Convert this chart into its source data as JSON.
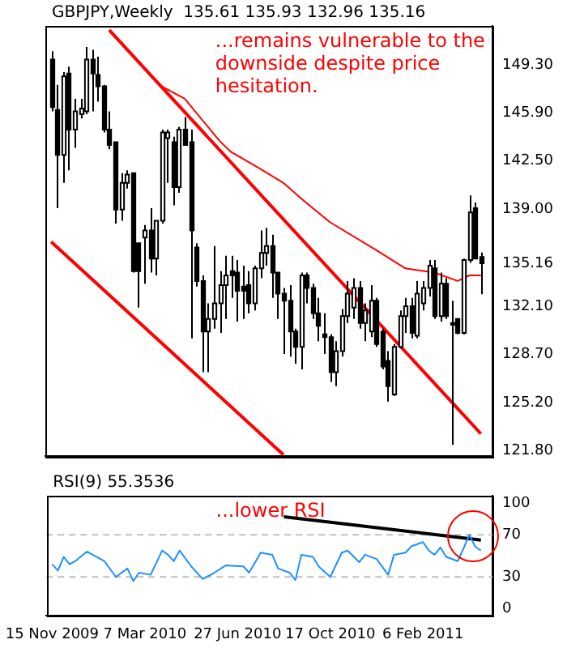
{
  "chart_data": [
    {
      "type": "candlestick",
      "title": "GBPJPY,Weekly  135.61 135.93 132.96 135.16",
      "annotations": [
        "...remains vulnerable to the downside despite price hesitation."
      ],
      "x": [
        "2009-11-15",
        "2009-11-22",
        "2009-11-29",
        "2009-12-06",
        "2009-12-13",
        "2009-12-20",
        "2009-12-27",
        "2010-01-03",
        "2010-01-10",
        "2010-01-17",
        "2010-01-24",
        "2010-01-31",
        "2010-02-07",
        "2010-02-14",
        "2010-02-21",
        "2010-02-28",
        "2010-03-07",
        "2010-03-14",
        "2010-03-21",
        "2010-03-28",
        "2010-04-04",
        "2010-04-11",
        "2010-04-18",
        "2010-04-25",
        "2010-05-02",
        "2010-05-09",
        "2010-05-16",
        "2010-05-23",
        "2010-05-30",
        "2010-06-06",
        "2010-06-13",
        "2010-06-20",
        "2010-06-27",
        "2010-07-04",
        "2010-07-11",
        "2010-07-18",
        "2010-07-25",
        "2010-08-01",
        "2010-08-08",
        "2010-08-15",
        "2010-08-22",
        "2010-08-29",
        "2010-09-05",
        "2010-09-12",
        "2010-09-19",
        "2010-09-26",
        "2010-10-03",
        "2010-10-10",
        "2010-10-17",
        "2010-10-24",
        "2010-10-31",
        "2010-11-07",
        "2010-11-14",
        "2010-11-21",
        "2010-11-28",
        "2010-12-05",
        "2010-12-12",
        "2010-12-19",
        "2010-12-26",
        "2011-01-02",
        "2011-01-09",
        "2011-01-16",
        "2011-01-23",
        "2011-01-30",
        "2011-02-06",
        "2011-02-13",
        "2011-02-20",
        "2011-02-27",
        "2011-03-06",
        "2011-03-13",
        "2011-03-20",
        "2011-03-27",
        "2011-04-03",
        "2011-04-10",
        "2011-04-17"
      ],
      "ohlc": [
        [
          149.7,
          150.3,
          146.0,
          146.3
        ],
        [
          146.1,
          147.9,
          139.1,
          142.9
        ],
        [
          142.9,
          148.8,
          140.9,
          148.5
        ],
        [
          148.7,
          149.2,
          141.8,
          144.7
        ],
        [
          144.7,
          146.9,
          143.4,
          146.0
        ],
        [
          145.8,
          146.9,
          145.5,
          146.2
        ],
        [
          146.0,
          150.6,
          145.8,
          149.7
        ],
        [
          149.7,
          150.4,
          146.0,
          148.7
        ],
        [
          148.6,
          149.9,
          146.7,
          147.8
        ],
        [
          147.8,
          147.9,
          144.5,
          144.7
        ],
        [
          144.7,
          146.0,
          143.3,
          143.6
        ],
        [
          143.8,
          143.8,
          138.0,
          139.0
        ],
        [
          139.0,
          141.6,
          138.2,
          140.9
        ],
        [
          140.9,
          141.8,
          140.5,
          141.5
        ],
        [
          141.6,
          141.6,
          134.5,
          134.6
        ],
        [
          136.6,
          136.6,
          132.0,
          134.6
        ],
        [
          137.0,
          137.9,
          133.7,
          137.5
        ],
        [
          137.5,
          139.1,
          134.5,
          135.5
        ],
        [
          135.5,
          138.2,
          134.3,
          138.2
        ],
        [
          138.2,
          144.7,
          138.0,
          144.5
        ],
        [
          144.1,
          144.7,
          140.9,
          144.5
        ],
        [
          143.8,
          144.2,
          139.3,
          140.6
        ],
        [
          140.6,
          144.9,
          140.2,
          144.7
        ],
        [
          144.7,
          145.6,
          143.6,
          143.6
        ],
        [
          143.8,
          144.7,
          129.8,
          137.5
        ],
        [
          136.3,
          136.6,
          133.5,
          133.9
        ],
        [
          133.9,
          134.3,
          127.4,
          130.3
        ],
        [
          130.3,
          132.3,
          127.4,
          131.2
        ],
        [
          131.2,
          136.4,
          130.5,
          132.3
        ],
        [
          132.3,
          134.6,
          130.2,
          133.6
        ],
        [
          133.6,
          135.7,
          131.2,
          134.3
        ],
        [
          134.6,
          135.7,
          132.7,
          134.3
        ],
        [
          134.5,
          135.4,
          131.0,
          133.2
        ],
        [
          133.5,
          135.0,
          131.2,
          133.2
        ],
        [
          133.6,
          134.6,
          131.6,
          132.3
        ],
        [
          132.3,
          135.0,
          131.8,
          134.8
        ],
        [
          134.8,
          137.5,
          134.1,
          135.9
        ],
        [
          135.9,
          137.7,
          135.0,
          136.4
        ],
        [
          136.4,
          137.2,
          132.7,
          134.5
        ],
        [
          134.5,
          134.5,
          131.2,
          133.0
        ],
        [
          133.0,
          133.4,
          128.7,
          132.5
        ],
        [
          132.5,
          133.6,
          128.5,
          130.3
        ],
        [
          130.3,
          130.5,
          128.0,
          129.2
        ],
        [
          129.2,
          134.5,
          127.6,
          134.3
        ],
        [
          134.3,
          134.5,
          132.3,
          133.4
        ],
        [
          133.4,
          133.7,
          131.2,
          131.6
        ],
        [
          131.6,
          132.7,
          129.6,
          130.7
        ],
        [
          130.1,
          131.6,
          128.7,
          129.9
        ],
        [
          129.9,
          130.1,
          126.7,
          127.4
        ],
        [
          127.4,
          129.6,
          126.4,
          128.9
        ],
        [
          128.9,
          131.9,
          128.5,
          131.4
        ],
        [
          131.4,
          133.9,
          130.9,
          133.0
        ],
        [
          132.0,
          134.1,
          131.2,
          133.4
        ],
        [
          133.4,
          133.9,
          130.5,
          130.9
        ],
        [
          130.9,
          132.3,
          129.6,
          131.8
        ],
        [
          130.3,
          133.6,
          129.9,
          132.5
        ],
        [
          132.5,
          132.7,
          129.2,
          129.4
        ],
        [
          130.3,
          130.5,
          127.6,
          127.8
        ],
        [
          128.2,
          128.9,
          125.3,
          126.4
        ],
        [
          125.8,
          129.4,
          125.7,
          129.2
        ],
        [
          129.2,
          131.8,
          129.1,
          131.4
        ],
        [
          131.4,
          132.7,
          130.2,
          132.1
        ],
        [
          132.1,
          132.7,
          129.8,
          130.2
        ],
        [
          130.0,
          133.9,
          129.8,
          133.0
        ],
        [
          132.3,
          133.9,
          131.8,
          133.4
        ],
        [
          133.4,
          135.4,
          132.8,
          135.0
        ],
        [
          134.8,
          135.4,
          131.2,
          131.4
        ],
        [
          131.4,
          134.5,
          131.0,
          133.7
        ],
        [
          133.7,
          134.1,
          131.2,
          131.4
        ],
        [
          130.9,
          132.5,
          122.2,
          130.8
        ],
        [
          131.2,
          131.2,
          130.1,
          130.2
        ],
        [
          130.2,
          135.5,
          130.1,
          135.4
        ],
        [
          135.4,
          140.0,
          135.2,
          138.8
        ],
        [
          139.1,
          139.5,
          135.5,
          135.5
        ],
        [
          135.61,
          135.93,
          132.96,
          135.16
        ]
      ],
      "series": [
        {
          "type": "line",
          "color": "#ff0000",
          "x": [
            "2010-03-28",
            "2010-04-25",
            "2010-06-06",
            "2010-06-20",
            "2010-07-25",
            "2010-08-22",
            "2010-09-12",
            "2010-10-17",
            "2010-12-12",
            "2011-01-16",
            "2011-02-20",
            "2011-03-20",
            "2011-04-03",
            "2011-04-17"
          ],
          "values": [
            147.8,
            146.9,
            143.9,
            143.1,
            141.9,
            140.9,
            139.8,
            138.1,
            136.1,
            134.8,
            134.5,
            133.9,
            134.3,
            134.3
          ]
        },
        {
          "type": "line",
          "color": "#ff0000",
          "x": [
            "2010-01-24",
            "2011-04-17"
          ],
          "values": [
            151.8,
            123.0
          ]
        },
        {
          "type": "line",
          "color": "#ff0000",
          "x": [
            "2009-11-15",
            "2010-08-22"
          ],
          "values": [
            136.7,
            121.5
          ]
        }
      ],
      "xlim": [
        "2009-11-08",
        "2011-05-01"
      ],
      "ylim": [
        121.4,
        152.1
      ],
      "yticks": [
        {
          "value": 149.3,
          "label": "149.30"
        },
        {
          "value": 145.9,
          "label": "145.90"
        },
        {
          "value": 142.5,
          "label": "142.50"
        },
        {
          "value": 139,
          "label": "139.00"
        },
        135.16,
        {
          "value": 132.1,
          "label": "132.10"
        },
        {
          "value": 128.7,
          "label": "128.70"
        },
        {
          "value": 125.2,
          "label": "125.20"
        },
        {
          "value": 121.8,
          "label": "121.80"
        }
      ],
      "tick_labels": "y",
      "grid": false,
      "legend": false
    },
    {
      "type": "line",
      "title": "RSI(9) 55.3536",
      "annotations": [
        "...lower RSI"
      ],
      "series": [
        {
          "color": "#1e90ff",
          "x": [
            "2009-11-15",
            "2009-11-22",
            "2009-11-29",
            "2009-12-06",
            "2009-12-13",
            "2009-12-27",
            "2010-01-03",
            "2010-01-17",
            "2010-01-31",
            "2010-02-14",
            "2010-02-21",
            "2010-02-28",
            "2010-03-14",
            "2010-03-28",
            "2010-04-04",
            "2010-04-11",
            "2010-04-18",
            "2010-05-02",
            "2010-05-16",
            "2010-05-30",
            "2010-06-13",
            "2010-07-04",
            "2010-07-11",
            "2010-07-25",
            "2010-08-08",
            "2010-08-15",
            "2010-08-29",
            "2010-09-05",
            "2010-09-12",
            "2010-09-26",
            "2010-10-03",
            "2010-10-17",
            "2010-10-31",
            "2010-11-07",
            "2010-11-21",
            "2010-11-28",
            "2010-12-12",
            "2010-12-26",
            "2011-01-02",
            "2011-01-16",
            "2011-01-23",
            "2011-02-06",
            "2011-02-13",
            "2011-02-20",
            "2011-02-27",
            "2011-03-06",
            "2011-03-20",
            "2011-03-27",
            "2011-04-03",
            "2011-04-10",
            "2011-04-17"
          ],
          "values": [
            42,
            36,
            49,
            42,
            45,
            54,
            51,
            45,
            30,
            38,
            26,
            34,
            32,
            55,
            51,
            45,
            55,
            40,
            28,
            34,
            41,
            40,
            34,
            53,
            51,
            38,
            34,
            27,
            51,
            49,
            40,
            30,
            53,
            55,
            44,
            51,
            47,
            32,
            51,
            53,
            59,
            63,
            55,
            51,
            58,
            49,
            45,
            57,
            70,
            59,
            55
          ]
        },
        {
          "color": "#000000",
          "x": [
            "2010-08-22",
            "2011-04-17"
          ],
          "values": [
            87,
            65
          ]
        }
      ],
      "ref_lines": [
        {
          "axis": "y",
          "value": 30,
          "color": "#c0c0c0",
          "line_style": "dashed"
        },
        {
          "axis": "y",
          "value": 70,
          "color": "#c0c0c0",
          "line_style": "dashed"
        }
      ],
      "xlim": [
        "2009-11-08",
        "2011-05-01"
      ],
      "ylim": [
        -7,
        107
      ],
      "xticks": [
        {
          "value": "2009-11-15",
          "label": "15 Nov 2009"
        },
        {
          "value": "2010-03-07",
          "label": "7 Mar 2010"
        },
        {
          "value": "2010-06-27",
          "label": "27 Jun 2010"
        },
        {
          "value": "2010-10-17",
          "label": "17 Oct 2010"
        },
        {
          "value": "2011-02-06",
          "label": "6 Feb 2011"
        }
      ],
      "yticks": [
        0,
        30,
        70,
        100
      ],
      "grid": false,
      "legend": false
    }
  ]
}
